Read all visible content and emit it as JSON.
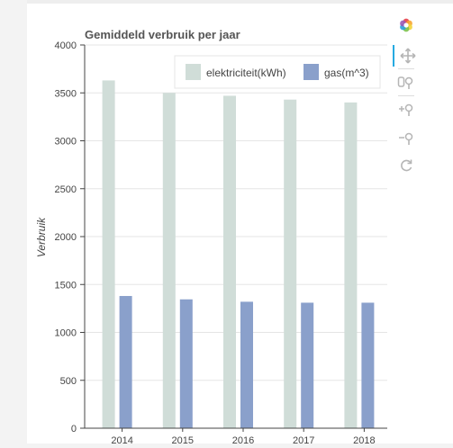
{
  "toolbar": {
    "logo_icon": "bokeh-logo-icon",
    "tools": [
      {
        "name": "pan-tool",
        "icon": "pan-icon",
        "active": true
      },
      {
        "name": "box-zoom-tool",
        "icon": "box-zoom-icon",
        "active": false
      },
      {
        "name": "zoom-in-tool",
        "icon": "zoom-in-icon",
        "active": false
      },
      {
        "name": "zoom-out-tool",
        "icon": "zoom-out-icon",
        "active": false
      },
      {
        "name": "reset-tool",
        "icon": "reset-icon",
        "active": false
      }
    ]
  },
  "colors": {
    "elektriciteit": "#d0ddd8",
    "gas": "#8aa0cb"
  },
  "chart_data": {
    "type": "bar",
    "title": "Gemiddeld verbruik per jaar",
    "xlabel": "",
    "ylabel": "Verbruik",
    "categories": [
      "2014",
      "2015",
      "2016",
      "2017",
      "2018"
    ],
    "ylim": [
      0,
      4000
    ],
    "yticks": [
      0,
      500,
      1000,
      1500,
      2000,
      2500,
      3000,
      3500,
      4000
    ],
    "grid": true,
    "legend_position": "top-right",
    "series": [
      {
        "name": "elektriciteit(kWh)",
        "values": [
          3630,
          3500,
          3470,
          3430,
          3400
        ]
      },
      {
        "name": "gas(m^3)",
        "values": [
          1380,
          1345,
          1320,
          1310,
          1310
        ]
      }
    ]
  }
}
